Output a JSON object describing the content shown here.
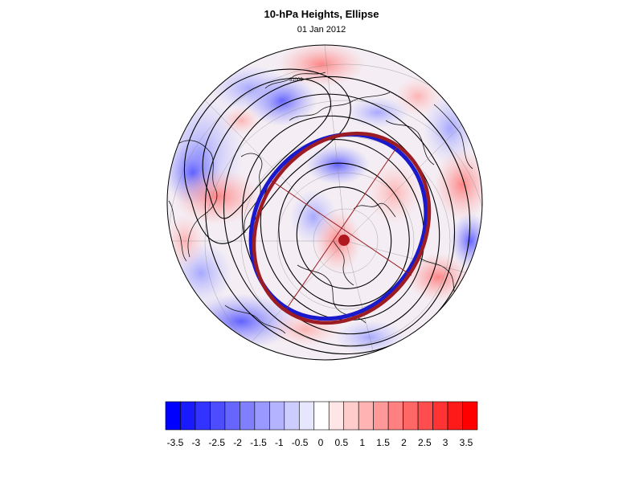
{
  "header": {
    "title": "10-hPa Heights, Ellipse",
    "subtitle": "01 Jan 2012"
  },
  "map": {
    "projection": "north-polar-stereographic",
    "field": "10-hPa geopotential height anomaly",
    "contour_label": "31000",
    "ellipse_colors": {
      "outer": "#9b1c22",
      "inner": "#1a1acc"
    },
    "centroid_color": "#b01820"
  },
  "colorbar": {
    "colors": [
      "#0000ff",
      "#1a1aff",
      "#3333ff",
      "#4d4dff",
      "#6666ff",
      "#8080ff",
      "#9999ff",
      "#b3b3ff",
      "#ccccff",
      "#e6e6ff",
      "#ffffff",
      "#ffe6e6",
      "#ffcccc",
      "#ffb3b3",
      "#ff9999",
      "#ff8080",
      "#ff6666",
      "#ff4d4d",
      "#ff3333",
      "#ff1a1a",
      "#ff0000"
    ],
    "tick_labels": [
      "-3.5",
      "-3",
      "-2.5",
      "-2",
      "-1.5",
      "-1",
      "-0.5",
      "0",
      "0.5",
      "1",
      "1.5",
      "2",
      "2.5",
      "3",
      "3.5"
    ]
  }
}
